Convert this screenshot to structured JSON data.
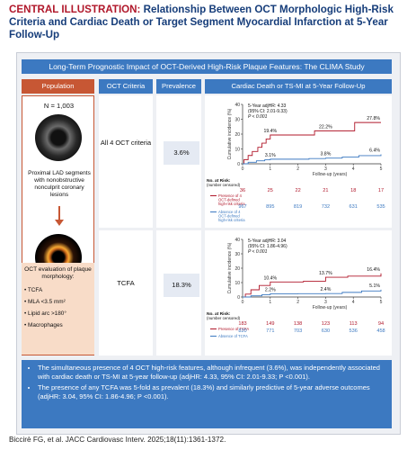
{
  "title": {
    "label": "CENTRAL ILLUSTRATION:",
    "text": "Relationship Between OCT Morphologic High-Risk Criteria and Cardiac Death or Target Segment Myocardial Infarction at 5-Year Follow-Up"
  },
  "banner": "Long-Term Prognostic Impact of OCT-Derived High-Risk Plaque Features: The CLIMA Study",
  "headers": {
    "population": "Population",
    "criteria": "OCT Criteria",
    "prevalence": "Prevalence",
    "outcome": "Cardiac Death or TS-MI at 5-Year Follow-Up"
  },
  "population": {
    "n": "N = 1,003",
    "desc": "Proximal LAD segments with nonobstructive nonculprit coronary lesions",
    "oct_eval": "OCT evaluation of plaque morphology:",
    "features": [
      "TCFA",
      "MLA <3.5 mm²",
      "Lipid arc >180°",
      "Macrophages"
    ]
  },
  "rows": [
    {
      "criteria": "All 4 OCT criteria",
      "prevalence": "3.6%"
    },
    {
      "criteria": "TCFA",
      "prevalence": "18.3%"
    }
  ],
  "chart_data": [
    {
      "type": "line",
      "ylabel": "Cumulative incidence (%)",
      "xlabel": "Follow-up (years)",
      "ylim": [
        0,
        40
      ],
      "yticks": [
        "40",
        "30",
        "20",
        "10",
        "0"
      ],
      "xticks": [
        "0",
        "1",
        "2",
        "3",
        "4",
        "5"
      ],
      "stat": [
        "5-Year adjHR: 4.33",
        "(95% CI: 2.01-9.33)",
        "P < 0.001"
      ],
      "risk_title": [
        "No. at Risk:",
        "(number censored)"
      ],
      "series": [
        {
          "name": "Presence of 4 OCT-defined high-risk criteria",
          "name_lines": [
            "Presence of 4",
            "OCT-defined",
            "high-risk criteria"
          ],
          "color": "#b0172a",
          "steps": [
            [
              0,
              0
            ],
            [
              0.05,
              2.8
            ],
            [
              0.2,
              5.6
            ],
            [
              0.35,
              8.3
            ],
            [
              0.55,
              11.1
            ],
            [
              0.7,
              13.9
            ],
            [
              0.85,
              16.7
            ],
            [
              1,
              19.4
            ],
            [
              2.1,
              19.4
            ],
            [
              2.6,
              22.2
            ],
            [
              4.0,
              22.2
            ],
            [
              4.05,
              27.8
            ],
            [
              5,
              27.8
            ]
          ],
          "labels": [
            "19.4%",
            "22.2%",
            "27.8%"
          ],
          "at_risk": [
            "36",
            "25",
            "22",
            "21",
            "18",
            "17"
          ]
        },
        {
          "name": "Absence of 4 OCT-defined high-risk criteria",
          "name_lines": [
            "Absence of 4",
            "OCT-defined",
            "high-risk criteria"
          ],
          "color": "#3c79c1",
          "steps": [
            [
              0,
              0
            ],
            [
              0.2,
              1.0
            ],
            [
              0.5,
              2.0
            ],
            [
              0.8,
              2.7
            ],
            [
              1,
              3.1
            ],
            [
              2.0,
              3.1
            ],
            [
              2.4,
              3.5
            ],
            [
              3,
              3.8
            ],
            [
              3.6,
              4.5
            ],
            [
              4.2,
              5.5
            ],
            [
              5,
              6.4
            ]
          ],
          "labels": [
            "3.1%",
            "3.8%",
            "6.4%"
          ],
          "at_risk": [
            "967",
            "895",
            "819",
            "732",
            "631",
            "535"
          ]
        }
      ]
    },
    {
      "type": "line",
      "ylabel": "Cumulative incidence (%)",
      "xlabel": "Follow-up (years)",
      "ylim": [
        0,
        40
      ],
      "yticks": [
        "40",
        "30",
        "20",
        "10",
        "0"
      ],
      "xticks": [
        "0",
        "1",
        "2",
        "3",
        "4",
        "5"
      ],
      "stat": [
        "5-Year adjHR: 3.04",
        "(95% CI: 1.86-4.96)",
        "P < 0.001"
      ],
      "risk_title": [
        "No. at Risk:",
        "(number censored)"
      ],
      "series": [
        {
          "name": "Presence of TCFA",
          "name_lines": [
            "Presence of TCFA"
          ],
          "color": "#b0172a",
          "steps": [
            [
              0,
              0
            ],
            [
              0.1,
              2.0
            ],
            [
              0.3,
              5.0
            ],
            [
              0.6,
              8.0
            ],
            [
              1,
              10.4
            ],
            [
              2.2,
              11.0
            ],
            [
              3,
              13.7
            ],
            [
              3.8,
              14.5
            ],
            [
              5,
              16.4
            ]
          ],
          "labels": [
            "10.4%",
            "13.7%",
            "16.4%"
          ],
          "at_risk": [
            "183",
            "149",
            "138",
            "123",
            "113",
            "94"
          ]
        },
        {
          "name": "Absence of TCFA",
          "name_lines": [
            "Absence of TCFA"
          ],
          "color": "#3c79c1",
          "steps": [
            [
              0,
              0
            ],
            [
              0.3,
              0.8
            ],
            [
              0.7,
              1.6
            ],
            [
              1,
              2.2
            ],
            [
              2.0,
              2.3
            ],
            [
              3,
              2.4
            ],
            [
              3.6,
              3.2
            ],
            [
              4.3,
              4.2
            ],
            [
              5,
              5.1
            ]
          ],
          "labels": [
            "2.2%",
            "2.4%",
            "5.1%"
          ],
          "at_risk": [
            "820",
            "771",
            "703",
            "630",
            "536",
            "458"
          ]
        }
      ]
    }
  ],
  "conclusions": [
    "The simultaneous presence of 4 OCT high-risk features, although infrequent (3.6%), was independently associated with cardiac death or TS-MI at 5-year follow-up (adjHR: 4.33, 95% CI: 2.01-9.33; P <0.001).",
    "The presence of any TCFA was 5-fold as prevalent (18.3%) and similarly predictive of 5-year adverse outcomes (adjHR: 3.04, 95% CI: 1.86-4.96; P <0.001)."
  ],
  "citation": "Biccirè FG, et al. JACC Cardiovasc Interv. 2025;18(11):1361-1372.",
  "colors": {
    "brand_blue": "#3c79c1",
    "accent_orange": "#c75734",
    "title_red": "#b0172a",
    "title_navy": "#163d7a"
  }
}
